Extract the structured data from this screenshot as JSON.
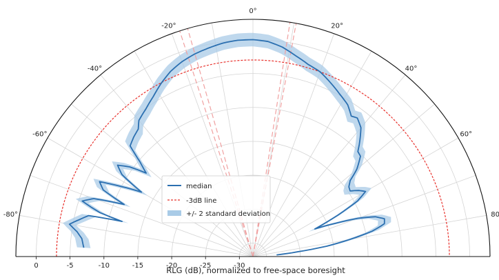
{
  "chart_data": {
    "type": "polar-half",
    "xlabel": "RLG (dB), normalized to free-space boresight",
    "r_ticks": [
      0,
      -5,
      -10,
      -15,
      -20,
      -25,
      -30
    ],
    "r_range": [
      -32,
      3
    ],
    "theta_range_deg": [
      -90,
      90
    ],
    "theta_ticks": [
      {
        "deg": -80,
        "label": "-80°"
      },
      {
        "deg": -60,
        "label": "-60°"
      },
      {
        "deg": -40,
        "label": "-40°"
      },
      {
        "deg": -20,
        "label": "-20°"
      },
      {
        "deg": 0,
        "label": "0°"
      },
      {
        "deg": 20,
        "label": "20°"
      },
      {
        "deg": 40,
        "label": "40°"
      },
      {
        "deg": 60,
        "label": "60°"
      },
      {
        "deg": 80,
        "label": "80"
      }
    ],
    "grid": true,
    "legend_position": "lower-left",
    "legend": [
      {
        "key": "median",
        "label": "median"
      },
      {
        "key": "minus3db",
        "label": "-3dB line"
      },
      {
        "key": "band",
        "label": "+/- 2 standard deviation"
      }
    ],
    "series": [
      {
        "name": "median",
        "color": "#2b6fb0",
        "points": [
          [
            -87,
            -7.0
          ],
          [
            -84,
            -6.6
          ],
          [
            -82,
            -5.8
          ],
          [
            -80,
            -4.5
          ],
          [
            -78,
            -5.8
          ],
          [
            -76,
            -7.0
          ],
          [
            -75,
            -12.0
          ],
          [
            -74,
            -8.5
          ],
          [
            -72,
            -5.5
          ],
          [
            -70,
            -7.0
          ],
          [
            -68,
            -11.5
          ],
          [
            -66,
            -7.8
          ],
          [
            -64,
            -6.8
          ],
          [
            -62,
            -10.0
          ],
          [
            -60,
            -13.0
          ],
          [
            -58,
            -9.2
          ],
          [
            -56,
            -7.9
          ],
          [
            -54,
            -9.5
          ],
          [
            -52,
            -12.0
          ],
          [
            -50,
            -10.2
          ],
          [
            -48,
            -7.6
          ],
          [
            -45,
            -7.1
          ],
          [
            -42,
            -6.7
          ],
          [
            -40,
            -5.8
          ],
          [
            -36,
            -5.1
          ],
          [
            -32,
            -4.2
          ],
          [
            -28,
            -3.1
          ],
          [
            -24,
            -2.1
          ],
          [
            -20,
            -1.4
          ],
          [
            -16,
            -0.9
          ],
          [
            -12,
            -0.55
          ],
          [
            -8,
            -0.2
          ],
          [
            -4,
            -0.02
          ],
          [
            0,
            0.0
          ],
          [
            4,
            -0.2
          ],
          [
            8,
            -0.8
          ],
          [
            12,
            -1.7
          ],
          [
            16,
            -2.5
          ],
          [
            20,
            -3.0
          ],
          [
            24,
            -3.9
          ],
          [
            28,
            -4.8
          ],
          [
            32,
            -5.6
          ],
          [
            35,
            -6.7
          ],
          [
            37,
            -6.4
          ],
          [
            40,
            -7.2
          ],
          [
            43,
            -8.9
          ],
          [
            45,
            -10.1
          ],
          [
            47,
            -10.3
          ],
          [
            50,
            -12.0
          ],
          [
            52,
            -13.8
          ],
          [
            54,
            -14.5
          ],
          [
            56,
            -14.7
          ],
          [
            58,
            -13.6
          ],
          [
            60,
            -12.8
          ],
          [
            62,
            -14.5
          ],
          [
            64,
            -18.0
          ],
          [
            66,
            -22.0
          ],
          [
            68,
            -19.0
          ],
          [
            70,
            -15.5
          ],
          [
            72,
            -13.0
          ],
          [
            74,
            -11.8
          ],
          [
            76,
            -12.0
          ],
          [
            78,
            -14.0
          ],
          [
            80,
            -17.5
          ],
          [
            82,
            -21.0
          ],
          [
            84,
            -25.5
          ],
          [
            86,
            -28.5
          ]
        ]
      },
      {
        "name": "-3dB line",
        "color": "#e8302b",
        "r_constant": -3.0
      },
      {
        "name": "+/- 2 standard deviation",
        "color": "#a9cbe7",
        "halfwidth_db": 1.0
      }
    ],
    "beam_lines": [
      {
        "deg": -18,
        "color": "#f0a0a0"
      },
      {
        "deg": -16,
        "color": "#f0a0a0"
      },
      {
        "deg": 9,
        "color": "#f0a0a0"
      },
      {
        "deg": 10.5,
        "color": "#f0a0a0"
      }
    ]
  }
}
